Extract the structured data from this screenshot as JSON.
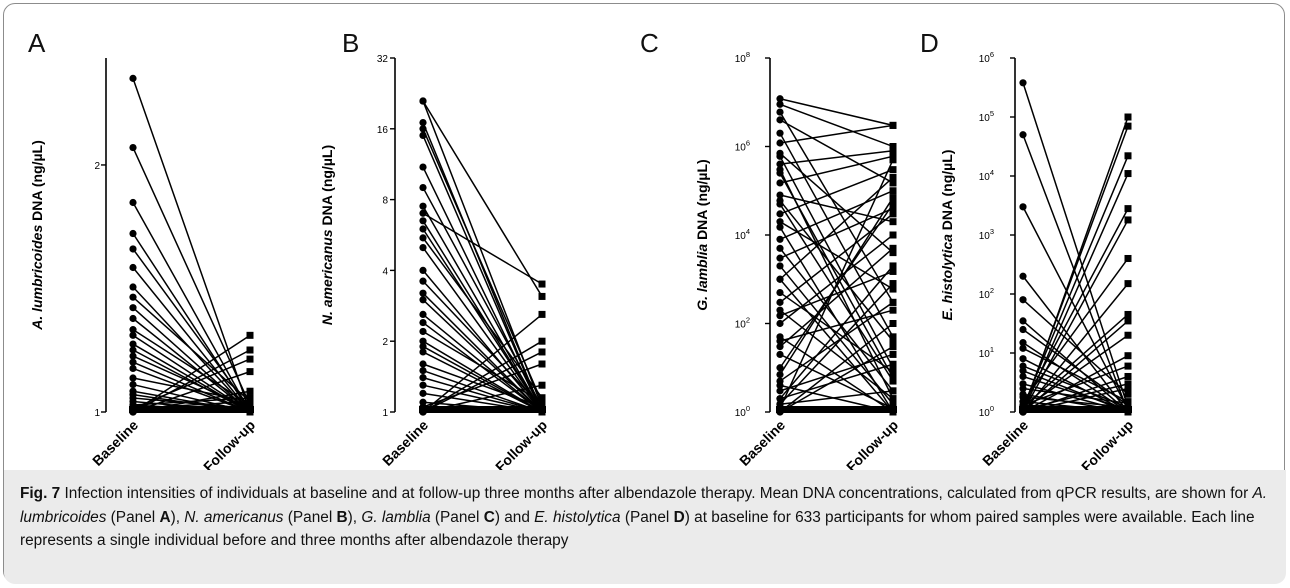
{
  "chart_data": [
    {
      "type": "line",
      "panel": "A",
      "ylabel_italic": "A. lumbricoides",
      "ylabel_rest": " DNA (ng/µL)",
      "categories": [
        "Baseline",
        "Follow-up"
      ],
      "yscale": "log2",
      "ylim": [
        1,
        2.7
      ],
      "ytick_values": [
        1,
        2
      ],
      "ytick_labels": [
        "1",
        "2"
      ],
      "series": [
        {
          "values": [
            2.55,
            1.0
          ]
        },
        {
          "values": [
            2.1,
            1.02
          ]
        },
        {
          "values": [
            1.8,
            1.0
          ]
        },
        {
          "values": [
            1.65,
            1.0
          ]
        },
        {
          "values": [
            1.58,
            1.01
          ]
        },
        {
          "values": [
            1.5,
            1.0
          ]
        },
        {
          "values": [
            1.42,
            1.0
          ]
        },
        {
          "values": [
            1.38,
            1.03
          ]
        },
        {
          "values": [
            1.34,
            1.0
          ]
        },
        {
          "values": [
            1.3,
            1.0
          ]
        },
        {
          "values": [
            1.26,
            1.02
          ]
        },
        {
          "values": [
            1.24,
            1.0
          ]
        },
        {
          "values": [
            1.21,
            1.0
          ]
        },
        {
          "values": [
            1.19,
            1.0
          ]
        },
        {
          "values": [
            1.17,
            1.01
          ]
        },
        {
          "values": [
            1.15,
            1.0
          ]
        },
        {
          "values": [
            1.13,
            1.0
          ]
        },
        {
          "values": [
            1.1,
            1.03
          ]
        },
        {
          "values": [
            1.08,
            1.0
          ]
        },
        {
          "values": [
            1.06,
            1.0
          ]
        },
        {
          "values": [
            1.05,
            1.0
          ]
        },
        {
          "values": [
            1.04,
            1.01
          ]
        },
        {
          "values": [
            1.03,
            1.0
          ]
        },
        {
          "values": [
            1.02,
            1.0
          ]
        },
        {
          "values": [
            1.01,
            1.0
          ]
        },
        {
          "values": [
            1.0,
            1.19
          ]
        },
        {
          "values": [
            1.0,
            1.24
          ]
        },
        {
          "values": [
            1.01,
            1.16
          ]
        },
        {
          "values": [
            1.0,
            1.12
          ]
        },
        {
          "values": [
            1.0,
            1.06
          ]
        },
        {
          "values": [
            1.02,
            1.04
          ]
        },
        {
          "values": [
            1.01,
            1.03
          ]
        }
      ]
    },
    {
      "type": "line",
      "panel": "B",
      "ylabel_italic": "N. americanus",
      "ylabel_rest": " DNA (ng/µL)",
      "categories": [
        "Baseline",
        "Follow-up"
      ],
      "yscale": "log2",
      "ylim": [
        1,
        32
      ],
      "ytick_values": [
        1,
        2,
        4,
        8,
        16,
        32
      ],
      "ytick_labels": [
        "1",
        "2",
        "4",
        "8",
        "16",
        "32"
      ],
      "series": [
        {
          "values": [
            21,
            1.05
          ]
        },
        {
          "values": [
            21,
            3.1
          ]
        },
        {
          "values": [
            17,
            1.0
          ]
        },
        {
          "values": [
            16,
            1.1
          ]
        },
        {
          "values": [
            15,
            1.0
          ]
        },
        {
          "values": [
            11,
            1.0
          ]
        },
        {
          "values": [
            9,
            1.05
          ]
        },
        {
          "values": [
            7.5,
            1.0
          ]
        },
        {
          "values": [
            7,
            3.5
          ]
        },
        {
          "values": [
            6.5,
            1.0
          ]
        },
        {
          "values": [
            6,
            1.0
          ]
        },
        {
          "values": [
            5.5,
            1.15
          ]
        },
        {
          "values": [
            5,
            1.0
          ]
        },
        {
          "values": [
            4,
            1.0
          ]
        },
        {
          "values": [
            3.6,
            1.05
          ]
        },
        {
          "values": [
            3.2,
            1.0
          ]
        },
        {
          "values": [
            3.0,
            1.0
          ]
        },
        {
          "values": [
            2.6,
            1.0
          ]
        },
        {
          "values": [
            2.4,
            1.0
          ]
        },
        {
          "values": [
            2.2,
            1.1
          ]
        },
        {
          "values": [
            2.0,
            1.0
          ]
        },
        {
          "values": [
            1.9,
            1.0
          ]
        },
        {
          "values": [
            1.8,
            1.0
          ]
        },
        {
          "values": [
            1.6,
            1.05
          ]
        },
        {
          "values": [
            1.5,
            1.0
          ]
        },
        {
          "values": [
            1.4,
            1.0
          ]
        },
        {
          "values": [
            1.3,
            1.0
          ]
        },
        {
          "values": [
            1.2,
            1.0
          ]
        },
        {
          "values": [
            1.1,
            1.0
          ]
        },
        {
          "values": [
            1.05,
            1.0
          ]
        },
        {
          "values": [
            1.0,
            2.0
          ]
        },
        {
          "values": [
            1.0,
            1.8
          ]
        },
        {
          "values": [
            1.0,
            2.6
          ]
        },
        {
          "values": [
            1.05,
            1.6
          ]
        },
        {
          "values": [
            1.0,
            1.3
          ]
        }
      ]
    },
    {
      "type": "line",
      "panel": "C",
      "ylabel_italic": "G. lamblia",
      "ylabel_rest": " DNA (ng/µL)",
      "categories": [
        "Baseline",
        "Follow-up"
      ],
      "yscale": "log10",
      "ylim": [
        1,
        100000000
      ],
      "ytick_values": [
        1,
        100,
        10000,
        1000000,
        100000000
      ],
      "ytick_base": [
        "10",
        "10",
        "10",
        "10",
        "10"
      ],
      "ytick_exp": [
        "0",
        "2",
        "4",
        "6",
        "8"
      ],
      "series": [
        {
          "values": [
            12000000,
            3000000
          ]
        },
        {
          "values": [
            9000000,
            1000000
          ]
        },
        {
          "values": [
            6000000,
            300
          ]
        },
        {
          "values": [
            2000000,
            50
          ]
        },
        {
          "values": [
            1200000,
            3000000
          ]
        },
        {
          "values": [
            600000,
            10
          ]
        },
        {
          "values": [
            400000,
            800000
          ]
        },
        {
          "values": [
            300000,
            2
          ]
        },
        {
          "values": [
            150000,
            600000
          ]
        },
        {
          "values": [
            80000,
            20000
          ]
        },
        {
          "values": [
            50000,
            5
          ]
        },
        {
          "values": [
            30000,
            300000
          ]
        },
        {
          "values": [
            15000,
            1
          ]
        },
        {
          "values": [
            8000,
            100000
          ]
        },
        {
          "values": [
            5000,
            3
          ]
        },
        {
          "values": [
            3000,
            40000
          ]
        },
        {
          "values": [
            2000,
            1.5
          ]
        },
        {
          "values": [
            1000,
            200000
          ]
        },
        {
          "values": [
            500,
            8
          ]
        },
        {
          "values": [
            300,
            30000
          ]
        },
        {
          "values": [
            200,
            2
          ]
        },
        {
          "values": [
            100,
            10000
          ]
        },
        {
          "values": [
            50,
            1
          ]
        },
        {
          "values": [
            30,
            5000
          ]
        },
        {
          "values": [
            20,
            1.2
          ]
        },
        {
          "values": [
            10,
            50000
          ]
        },
        {
          "values": [
            5,
            300
          ]
        },
        {
          "values": [
            3,
            20
          ]
        },
        {
          "values": [
            2,
            2000
          ]
        },
        {
          "values": [
            1.5,
            800
          ]
        },
        {
          "values": [
            1,
            100
          ]
        },
        {
          "values": [
            1,
            30
          ]
        },
        {
          "values": [
            1.2,
            500000
          ]
        },
        {
          "values": [
            4,
            1
          ]
        },
        {
          "values": [
            700000,
            4000
          ]
        },
        {
          "values": [
            60000,
            40
          ]
        },
        {
          "values": [
            7,
            70000
          ]
        },
        {
          "values": [
            250000,
            6
          ]
        },
        {
          "values": [
            40,
            200
          ]
        },
        {
          "values": [
            4000000,
            150000
          ]
        },
        {
          "values": [
            2,
            12
          ]
        },
        {
          "values": [
            1000,
            1
          ]
        },
        {
          "values": [
            150,
            1500
          ]
        },
        {
          "values": [
            20000,
            600
          ]
        },
        {
          "values": [
            1.5,
            3
          ]
        }
      ]
    },
    {
      "type": "line",
      "panel": "D",
      "ylabel_italic": "E. histolytica",
      "ylabel_rest": " DNA (ng/µL)",
      "categories": [
        "Baseline",
        "Follow-up"
      ],
      "yscale": "log10",
      "ylim": [
        1,
        1000000
      ],
      "ytick_values": [
        1,
        10,
        100,
        1000,
        10000,
        100000,
        1000000
      ],
      "ytick_base": [
        "10",
        "10",
        "10",
        "10",
        "10",
        "10",
        "10"
      ],
      "ytick_exp": [
        "0",
        "1",
        "2",
        "3",
        "4",
        "5",
        "6"
      ],
      "series": [
        {
          "values": [
            380000,
            1.2
          ]
        },
        {
          "values": [
            50000,
            1.0
          ]
        },
        {
          "values": [
            3000,
            1.1
          ]
        },
        {
          "values": [
            200,
            1.0
          ]
        },
        {
          "values": [
            80,
            2.0
          ]
        },
        {
          "values": [
            35,
            1.0
          ]
        },
        {
          "values": [
            25,
            1.3
          ]
        },
        {
          "values": [
            15,
            1.0
          ]
        },
        {
          "values": [
            12,
            1.5
          ]
        },
        {
          "values": [
            8,
            1.0
          ]
        },
        {
          "values": [
            6,
            1.2
          ]
        },
        {
          "values": [
            5,
            1.0
          ]
        },
        {
          "values": [
            4,
            1.1
          ]
        },
        {
          "values": [
            3,
            1.0
          ]
        },
        {
          "values": [
            2.5,
            1.4
          ]
        },
        {
          "values": [
            2,
            1.0
          ]
        },
        {
          "values": [
            1.8,
            1.2
          ]
        },
        {
          "values": [
            1.5,
            1.0
          ]
        },
        {
          "values": [
            1.3,
            1.1
          ]
        },
        {
          "values": [
            1.0,
            100000
          ]
        },
        {
          "values": [
            1.1,
            70000
          ]
        },
        {
          "values": [
            1.2,
            22000
          ]
        },
        {
          "values": [
            1.0,
            11000
          ]
        },
        {
          "values": [
            1.3,
            2800
          ]
        },
        {
          "values": [
            1.0,
            1800
          ]
        },
        {
          "values": [
            1.5,
            400
          ]
        },
        {
          "values": [
            1.0,
            150
          ]
        },
        {
          "values": [
            1.2,
            45
          ]
        },
        {
          "values": [
            1.0,
            35
          ]
        },
        {
          "values": [
            1.1,
            20
          ]
        },
        {
          "values": [
            1.0,
            9
          ]
        },
        {
          "values": [
            1.3,
            6
          ]
        },
        {
          "values": [
            1.0,
            4
          ]
        },
        {
          "values": [
            1.1,
            3
          ]
        },
        {
          "values": [
            1.0,
            2.5
          ]
        }
      ]
    }
  ],
  "caption": {
    "fig_label": "Fig. 7",
    "seg1": " Infection intensities of individuals at baseline and at follow-up three months after albendazole therapy. Mean DNA concentrations, calculated from qPCR results, are shown for ",
    "sp_a": "A. lumbricoides",
    "seg2": " (Panel ",
    "pa": "A",
    "seg3": "), ",
    "sp_b": "N. americanus",
    "seg4": " (Panel ",
    "pb": "B",
    "seg5": "), ",
    "sp_c": "G. lamblia",
    "seg6": " (Panel ",
    "pc": "C",
    "seg7": ") and ",
    "sp_d": "E. histolytica",
    "seg8": " (Panel ",
    "pd": "D",
    "seg9": ") at baseline for 633 participants for whom paired samples were available. Each line represents a single individual before and three months after albendazole therapy"
  }
}
